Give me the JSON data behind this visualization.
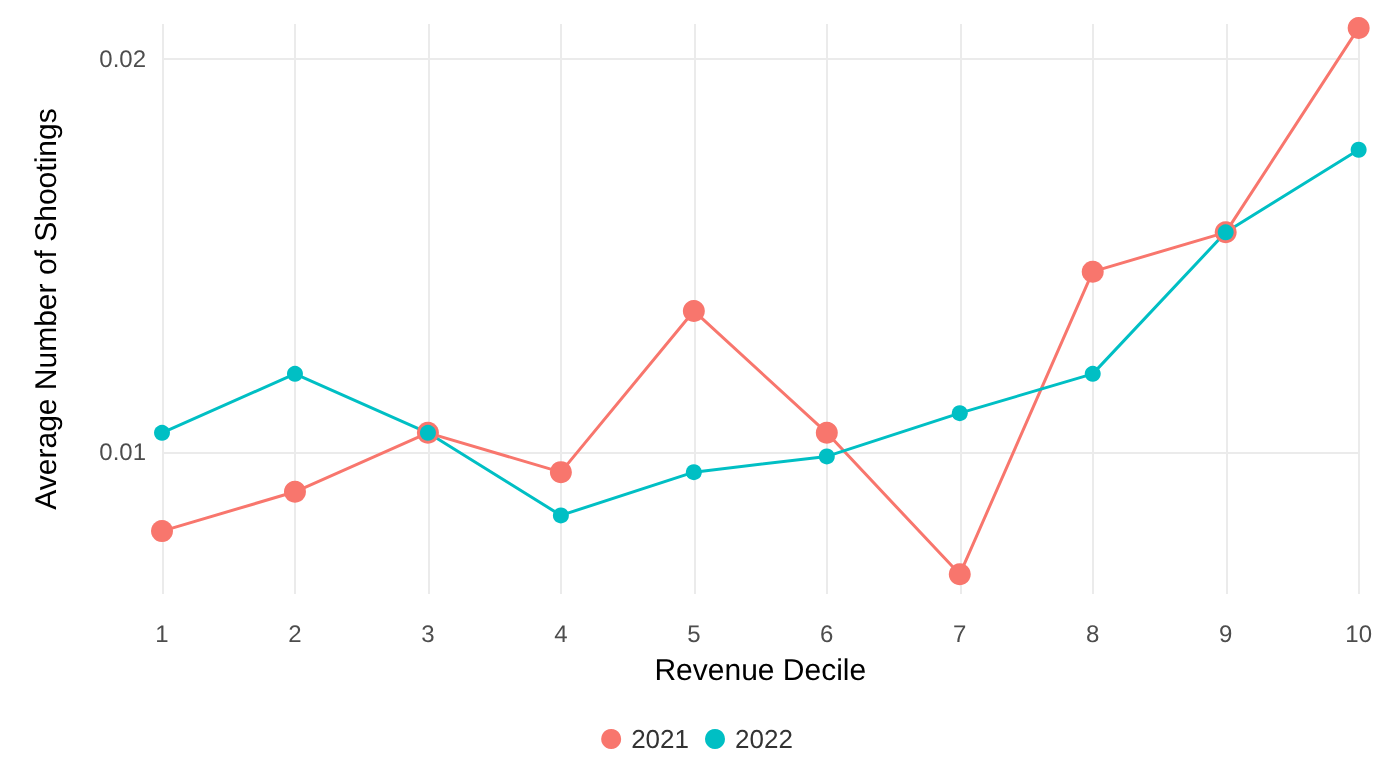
{
  "chart_data": {
    "type": "line",
    "xlabel": "Revenue Decile",
    "ylabel": "Average Number of Shootings",
    "categories": [
      "1",
      "2",
      "3",
      "4",
      "5",
      "6",
      "7",
      "8",
      "9",
      "10"
    ],
    "series": [
      {
        "name": "2021",
        "color": "#f8766d",
        "values": [
          0.008,
          0.009,
          0.0105,
          0.0095,
          0.0136,
          0.0105,
          0.0069,
          0.0146,
          0.0156,
          0.0208
        ]
      },
      {
        "name": "2022",
        "color": "#00bfc4",
        "values": [
          0.0105,
          0.012,
          0.0105,
          0.0084,
          0.0095,
          0.0099,
          0.011,
          0.012,
          0.0156,
          0.0177
        ]
      }
    ],
    "ylim": [
      0.0064,
      0.0209
    ],
    "yticks": [
      0.01,
      0.02
    ],
    "grid": true,
    "legend": "bottom",
    "marker": "circle",
    "line_style": "solid"
  }
}
